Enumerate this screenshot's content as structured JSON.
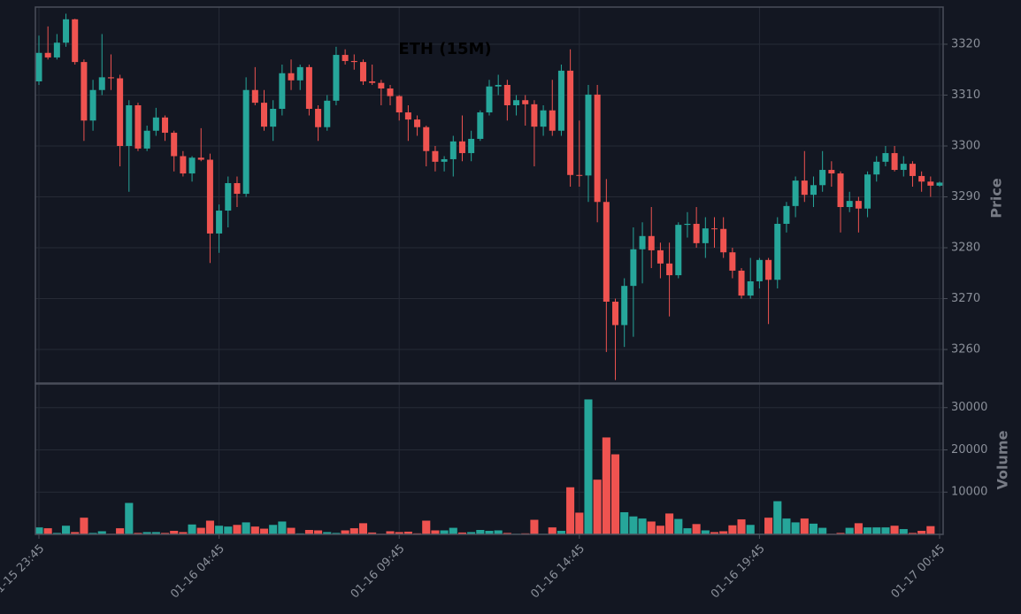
{
  "chart_data": {
    "type": "candlestick",
    "title": "ETH (15M)",
    "ylabel": "Price",
    "volume_label": "Volume",
    "x": [
      "01-15 23:45",
      null,
      null,
      null,
      null,
      null,
      null,
      null,
      null,
      null,
      null,
      null,
      null,
      null,
      null,
      null,
      null,
      null,
      null,
      null,
      "01-16 04:45",
      null,
      null,
      null,
      null,
      null,
      null,
      null,
      null,
      null,
      null,
      null,
      null,
      null,
      null,
      null,
      null,
      null,
      null,
      null,
      "01-16 09:45",
      null,
      null,
      null,
      null,
      null,
      null,
      null,
      null,
      null,
      null,
      null,
      null,
      null,
      null,
      null,
      null,
      null,
      null,
      null,
      "01-16 14:45",
      null,
      null,
      null,
      null,
      null,
      null,
      null,
      null,
      null,
      null,
      null,
      null,
      null,
      null,
      null,
      null,
      null,
      null,
      null,
      "01-16 19:45",
      null,
      null,
      null,
      null,
      null,
      null,
      null,
      null,
      null,
      null,
      null,
      null,
      null,
      null,
      null,
      null,
      null,
      null,
      null,
      "01-17 00:45"
    ],
    "open": [
      3312.7,
      3318.3,
      3317.4,
      3320.3,
      3324.9,
      3316.5,
      3305,
      3311,
      3313.5,
      3313.3,
      3300,
      3308,
      3299.5,
      3303,
      3305.6,
      3302.6,
      3298,
      3294.6,
      3297.7,
      3297.3,
      3282.8,
      3287.3,
      3292.7,
      3290.6,
      3311,
      3308.5,
      3303.8,
      3307.3,
      3314.3,
      3312.9,
      3315.5,
      3307.3,
      3303.7,
      3308.9,
      3317.9,
      3316.7,
      3316.5,
      3312.7,
      3312.4,
      3311.3,
      3309.8,
      3306.6,
      3305.2,
      3303.7,
      3299,
      3296.9,
      3297.4,
      3300.9,
      3298.6,
      3301.4,
      3306.6,
      3311.7,
      3312,
      3308,
      3309,
      3308.2,
      3303.8,
      3307,
      3303,
      3314.8,
      3294.3,
      3294.2,
      3310.1,
      3289,
      3269.4,
      3264.8,
      3272.5,
      3279.7,
      3282.3,
      3279.5,
      3276.9,
      3274.6,
      3284.5,
      3284.7,
      3280.9,
      3283.8,
      3283.7,
      3279.1,
      3275.5,
      3270.6,
      3273.4,
      3277.6,
      3273.7,
      3284.7,
      3288.2,
      3293.2,
      3290.4,
      3292.3,
      3295.3,
      3294.6,
      3288,
      3289.2,
      3287.7,
      3294.4,
      3296.9,
      3298.6,
      3295.3,
      3296.5,
      3294.1,
      3293,
      3292.2
    ],
    "high": [
      3321.7,
      3323.5,
      3322,
      3326,
      3325,
      3317,
      3313,
      3322,
      3318,
      3314,
      3309,
      3308.5,
      3304,
      3307.5,
      3306,
      3303,
      3299,
      3298,
      3303.5,
      3298.5,
      3288.5,
      3294,
      3294,
      3313.5,
      3315.5,
      3311,
      3309,
      3316,
      3317,
      3316,
      3316,
      3308,
      3310,
      3319.5,
      3319,
      3318,
      3317,
      3316,
      3313,
      3312,
      3310,
      3308,
      3306,
      3304,
      3300,
      3298,
      3302,
      3306,
      3303,
      3307,
      3313,
      3314,
      3313,
      3310,
      3310,
      3309,
      3308,
      3313,
      3316,
      3319,
      3305,
      3312,
      3312,
      3293.5,
      3270,
      3274,
      3284,
      3285,
      3288,
      3281,
      3281,
      3285,
      3287,
      3288,
      3286,
      3286,
      3286,
      3280,
      3276,
      3278,
      3278,
      3278,
      3286,
      3289,
      3294,
      3299,
      3294,
      3299,
      3297,
      3295,
      3291,
      3290,
      3295,
      3298,
      3300,
      3300,
      3298,
      3297,
      3295,
      3294,
      3293
    ],
    "low": [
      3312,
      3317,
      3317,
      3319.5,
      3316,
      3301,
      3303,
      3310,
      3311,
      3296,
      3291,
      3299,
      3299,
      3302,
      3301,
      3295,
      3294,
      3293,
      3297,
      3277,
      3279,
      3284,
      3288,
      3290,
      3308,
      3303,
      3301,
      3306,
      3311,
      3311,
      3306,
      3301,
      3303,
      3308,
      3316,
      3315,
      3312,
      3312,
      3308,
      3308,
      3305,
      3301,
      3302,
      3296,
      3295,
      3295,
      3294,
      3297,
      3297,
      3301,
      3306,
      3310,
      3305,
      3306,
      3304,
      3296,
      3302,
      3302,
      3302,
      3292,
      3292,
      3289,
      3285,
      3259.5,
      3254,
      3260.5,
      3262.5,
      3273,
      3276,
      3274,
      3266.5,
      3274,
      3282,
      3280,
      3278,
      3280,
      3278,
      3274,
      3270,
      3270,
      3272,
      3265,
      3272,
      3283,
      3286,
      3289,
      3288,
      3291,
      3292,
      3283,
      3287,
      3283,
      3286,
      3293,
      3296,
      3295,
      3294,
      3292,
      3291,
      3290,
      3292
    ],
    "close": [
      3318.3,
      3317.4,
      3320.3,
      3324.9,
      3316.5,
      3305,
      3311,
      3313.5,
      3313.3,
      3300,
      3308,
      3299.5,
      3303,
      3305.6,
      3302.6,
      3298,
      3294.6,
      3297.7,
      3297.3,
      3282.8,
      3287.3,
      3292.7,
      3290.6,
      3311,
      3308.5,
      3303.8,
      3307.3,
      3314.3,
      3312.9,
      3315.5,
      3307.3,
      3303.7,
      3308.9,
      3317.9,
      3316.7,
      3316.5,
      3312.7,
      3312.4,
      3311.3,
      3309.8,
      3306.6,
      3305.2,
      3303.7,
      3299,
      3296.9,
      3297.4,
      3300.9,
      3298.6,
      3301.4,
      3306.6,
      3311.7,
      3312,
      3308,
      3309,
      3308.2,
      3303.8,
      3307,
      3303,
      3314.8,
      3294.3,
      3294.2,
      3310.1,
      3289,
      3269.4,
      3264.8,
      3272.5,
      3279.7,
      3282.3,
      3279.5,
      3276.9,
      3274.6,
      3284.5,
      3284.7,
      3280.9,
      3283.8,
      3283.7,
      3279.1,
      3275.5,
      3270.6,
      3273.4,
      3277.6,
      3273.7,
      3284.7,
      3288.2,
      3293.2,
      3290.4,
      3292.3,
      3295.3,
      3294.6,
      3288,
      3289.2,
      3287.7,
      3294.4,
      3296.9,
      3298.6,
      3295.3,
      3296.5,
      3294.1,
      3293,
      3292.2,
      3292.8
    ],
    "volume": [
      1700,
      1500,
      400,
      2100,
      600,
      4000,
      400,
      800,
      200,
      1500,
      7500,
      400,
      600,
      600,
      400,
      900,
      600,
      2400,
      1600,
      3300,
      2100,
      1900,
      2300,
      2900,
      1900,
      1400,
      2300,
      3100,
      1600,
      300,
      1100,
      1000,
      600,
      400,
      1000,
      1500,
      2700,
      500,
      200,
      800,
      600,
      700,
      300,
      3300,
      1000,
      1000,
      1600,
      500,
      600,
      1100,
      900,
      1000,
      400,
      200,
      300,
      3500,
      200,
      1700,
      900,
      11200,
      5200,
      32000,
      13000,
      23000,
      19000,
      5300,
      4300,
      3800,
      3100,
      2100,
      5000,
      3700,
      1500,
      2500,
      1000,
      600,
      800,
      2200,
      3600,
      2300,
      200,
      4000,
      7900,
      3800,
      2900,
      3800,
      2600,
      1600,
      200,
      400,
      1600,
      2700,
      1700,
      1700,
      1700,
      2100,
      1300,
      400,
      900,
      2000,
      100
    ],
    "up_color": "#26a69a",
    "down_color": "#ef5350",
    "ylim": [
      3253.4,
      3327.3
    ],
    "yticks": [
      3260,
      3270,
      3280,
      3290,
      3300,
      3310,
      3320
    ],
    "volume_ylim": [
      0,
      35600
    ],
    "volume_yticks": [
      10000,
      20000,
      30000
    ],
    "grid": true
  }
}
